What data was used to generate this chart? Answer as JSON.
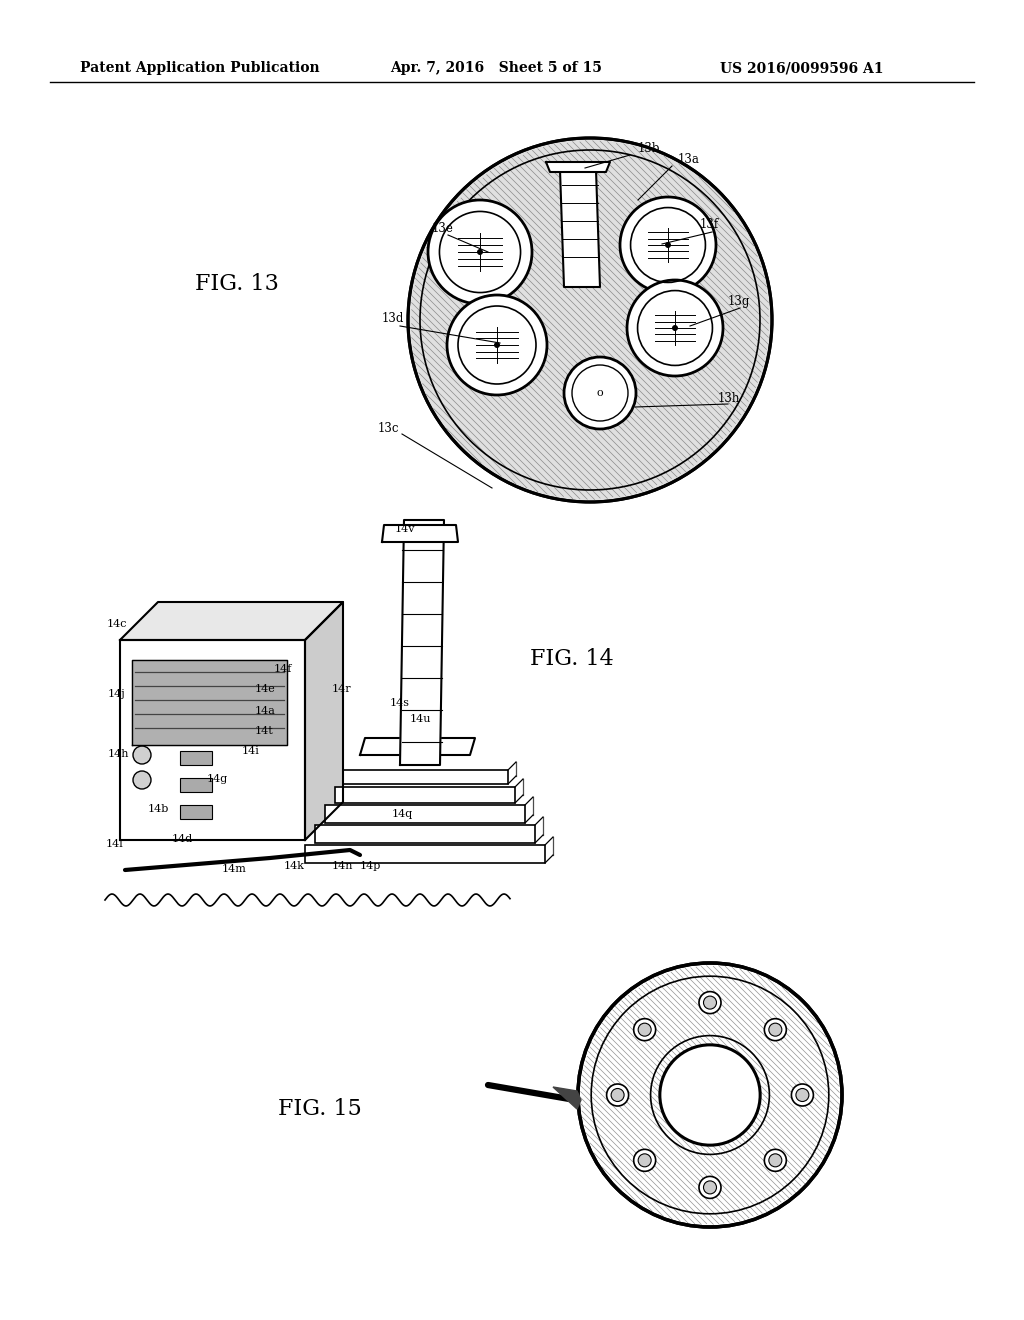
{
  "bg_color": "#ffffff",
  "header_left": "Patent Application Publication",
  "header_center": "Apr. 7, 2016   Sheet 5 of 15",
  "header_right": "US 2016/0099596 A1",
  "fig13_label": "FIG. 13",
  "fig14_label": "FIG. 14",
  "fig15_label": "FIG. 15",
  "header_fontsize": 10,
  "fig_label_fontsize": 16,
  "labels_13": [
    [
      638,
      152,
      "13b"
    ],
    [
      678,
      163,
      "13a"
    ],
    [
      432,
      232,
      "13e"
    ],
    [
      700,
      228,
      "13f"
    ],
    [
      728,
      305,
      "13g"
    ],
    [
      382,
      322,
      "13d"
    ],
    [
      378,
      432,
      "13c"
    ],
    [
      718,
      402,
      "13h"
    ]
  ],
  "labels_14": [
    [
      107,
      627,
      "14c"
    ],
    [
      108,
      697,
      "14j"
    ],
    [
      108,
      757,
      "14h"
    ],
    [
      148,
      812,
      "14b"
    ],
    [
      172,
      842,
      "14d"
    ],
    [
      207,
      782,
      "14g"
    ],
    [
      106,
      847,
      "14l"
    ],
    [
      222,
      872,
      "14m"
    ],
    [
      284,
      869,
      "14k"
    ],
    [
      332,
      869,
      "14n"
    ],
    [
      360,
      869,
      "14p"
    ],
    [
      274,
      672,
      "14f"
    ],
    [
      255,
      692,
      "14e"
    ],
    [
      255,
      714,
      "14a"
    ],
    [
      255,
      734,
      "14t"
    ],
    [
      242,
      754,
      "14i"
    ],
    [
      392,
      817,
      "14q"
    ],
    [
      332,
      692,
      "14r"
    ],
    [
      410,
      722,
      "14u"
    ],
    [
      390,
      706,
      "14s"
    ],
    [
      395,
      532,
      "14v"
    ]
  ]
}
